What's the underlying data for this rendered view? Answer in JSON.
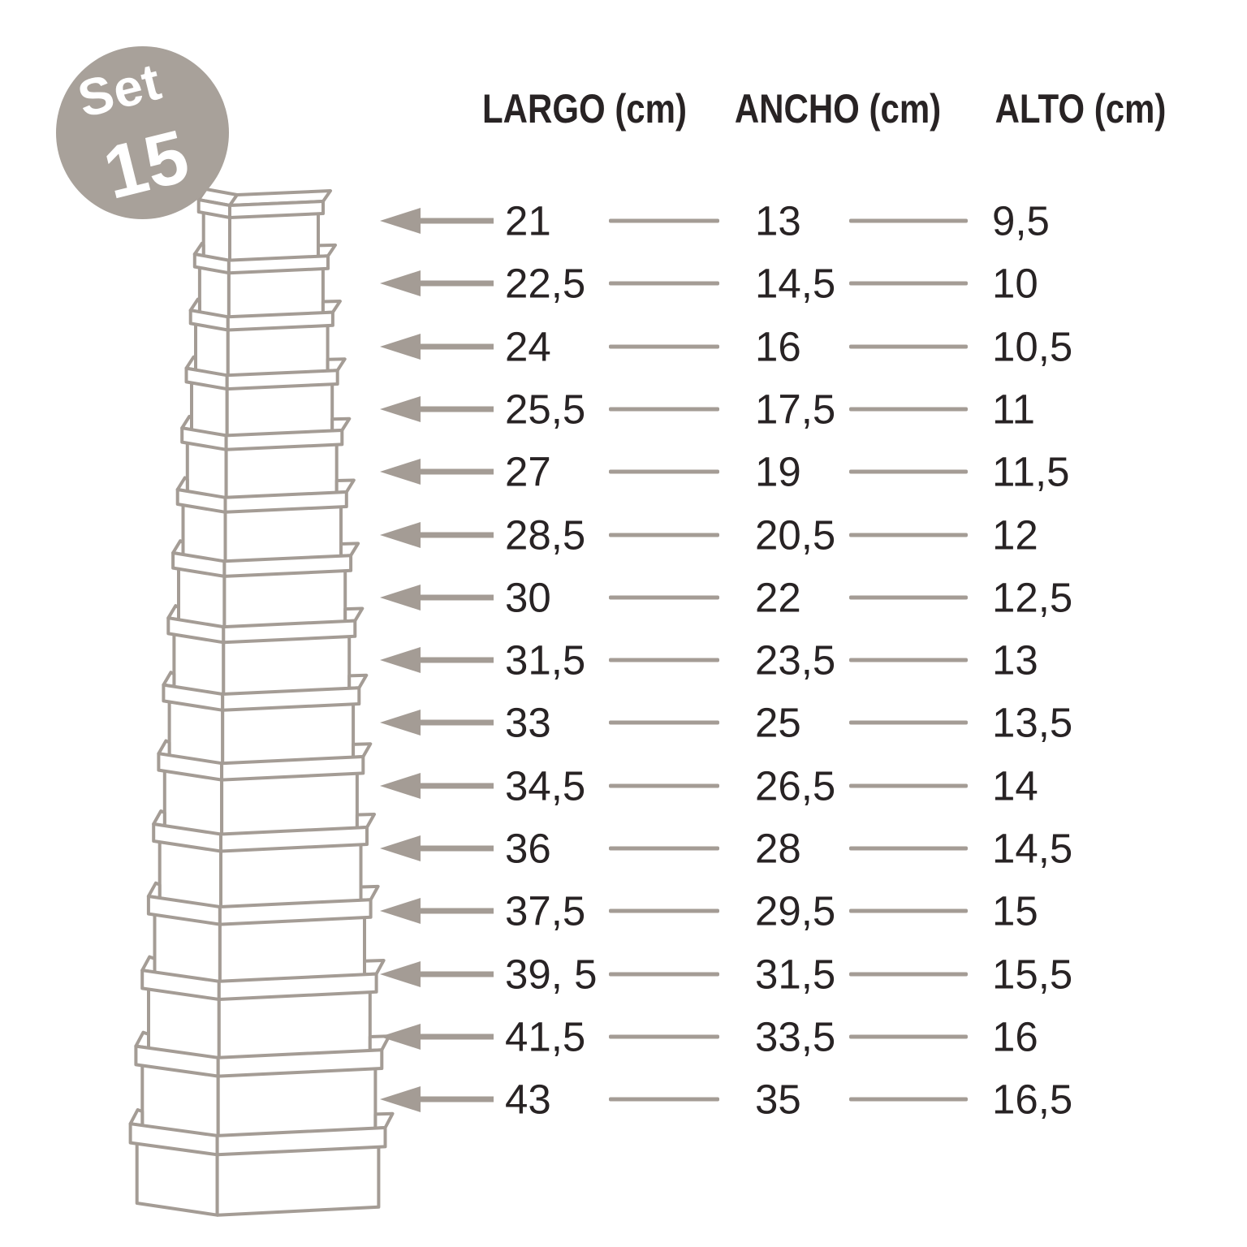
{
  "badge": {
    "line1": "Set",
    "line2": "15"
  },
  "table": {
    "headers": [
      {
        "label": "LARGO (cm)"
      },
      {
        "label": "ANCHO (cm)"
      },
      {
        "label": "ALTO (cm)"
      }
    ],
    "rows": [
      {
        "largo": "21",
        "ancho": "13",
        "alto": "9,5"
      },
      {
        "largo": "22,5",
        "ancho": "14,5",
        "alto": "10"
      },
      {
        "largo": "24",
        "ancho": "16",
        "alto": "10,5"
      },
      {
        "largo": "25,5",
        "ancho": "17,5",
        "alto": "11"
      },
      {
        "largo": "27",
        "ancho": "19",
        "alto": "11,5"
      },
      {
        "largo": "28,5",
        "ancho": "20,5",
        "alto": "12"
      },
      {
        "largo": "30",
        "ancho": "22",
        "alto": "12,5"
      },
      {
        "largo": "31,5",
        "ancho": "23,5",
        "alto": "13"
      },
      {
        "largo": "33",
        "ancho": "25",
        "alto": "13,5"
      },
      {
        "largo": "34,5",
        "ancho": "26,5",
        "alto": "14"
      },
      {
        "largo": "36",
        "ancho": "28",
        "alto": "14,5"
      },
      {
        "largo": "37,5",
        "ancho": "29,5",
        "alto": "15"
      },
      {
        "largo": "39, 5",
        "ancho": "31,5",
        "alto": "15,5"
      },
      {
        "largo": "41,5",
        "ancho": "33,5",
        "alto": "16"
      },
      {
        "largo": "43",
        "ancho": "35",
        "alto": "16,5"
      }
    ]
  },
  "colors": {
    "text": "#282324",
    "line": "#a49c95",
    "badge": "#a8a19a",
    "background": "#ffffff"
  }
}
